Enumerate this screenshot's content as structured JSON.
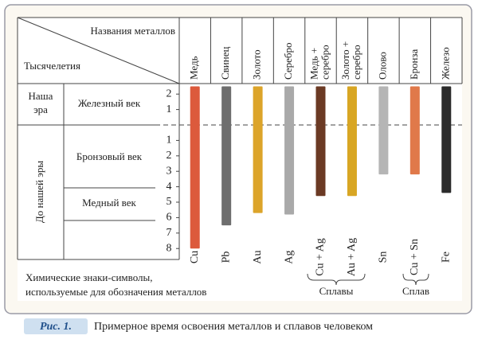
{
  "header": {
    "metals_label": "Названия металлов",
    "millennia_label": "Тысячелетия"
  },
  "eras": [
    {
      "lines": [
        "Наша",
        "эра"
      ]
    },
    {
      "lines": [
        "До нашей эры"
      ]
    }
  ],
  "periods": [
    "Железный век",
    "Бронзовый век",
    "Медный век"
  ],
  "chart_data": {
    "type": "range-bar",
    "categories": [
      [
        "Медь"
      ],
      [
        "Свинец"
      ],
      [
        "Золото"
      ],
      [
        "Серебро"
      ],
      [
        "Медь +",
        "серебро"
      ],
      [
        "Золото +",
        "серебро"
      ],
      [
        "Олово"
      ],
      [
        "Бронза"
      ],
      [
        "Железо"
      ]
    ],
    "symbols": [
      "Cu",
      "Pb",
      "Au",
      "Ag",
      "Cu + Ag",
      "Au + Ag",
      "Sn",
      "Cu + Sn",
      "Fe"
    ],
    "values": [
      -8,
      -6.5,
      -5.7,
      -5.8,
      -4.6,
      -4.6,
      -3.2,
      -3.2,
      -4.4
    ],
    "colors": [
      "#dc5a3c",
      "#6e6e6e",
      "#dca42a",
      "#a9a9a9",
      "#6b3a24",
      "#d8a624",
      "#b5b5b5",
      "#e0794a",
      "#2b2b2b"
    ],
    "ylim": [
      -8.7,
      2.5
    ],
    "yticks": [
      2,
      1,
      {
        "value": -1,
        "label": "1"
      },
      {
        "value": -2,
        "label": "2"
      },
      {
        "value": -3,
        "label": "3"
      },
      {
        "value": -4,
        "label": "4"
      },
      {
        "value": -5,
        "label": "5"
      },
      {
        "value": -6,
        "label": "6"
      },
      {
        "value": -7,
        "label": "7"
      },
      {
        "value": -8,
        "label": "8"
      }
    ]
  },
  "groups": [
    {
      "label": "Сплавы"
    },
    {
      "label": "Сплав"
    }
  ],
  "footer": [
    "Химические знаки-символы,",
    "используемые для обозначения металлов"
  ],
  "caption": {
    "label": "Рис. 1.",
    "text": "Примерное время освоения металлов и сплавов человеком"
  }
}
